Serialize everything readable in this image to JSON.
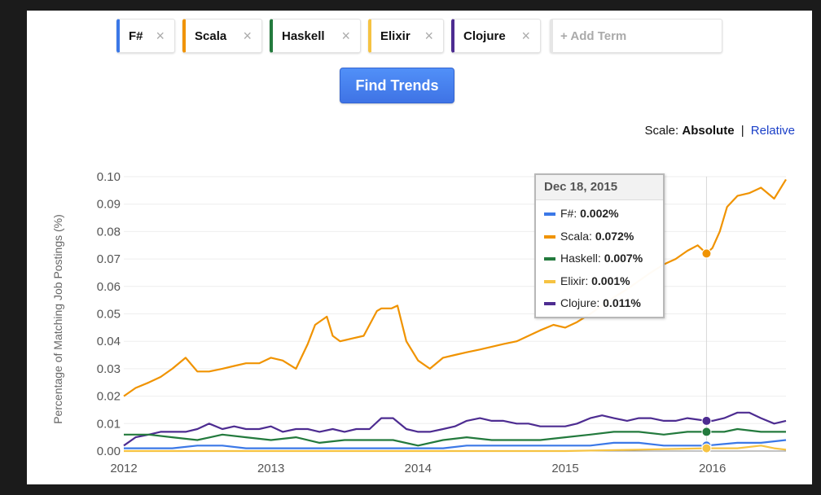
{
  "terms": [
    {
      "label": "F#",
      "color": "#3b78e7"
    },
    {
      "label": "Scala",
      "color": "#f09300"
    },
    {
      "label": "Haskell",
      "color": "#237a3d"
    },
    {
      "label": "Elixir",
      "color": "#f6c342"
    },
    {
      "label": "Clojure",
      "color": "#4d2c91"
    }
  ],
  "close_glyph": "×",
  "add_term_label": "+ Add Term",
  "find_button_label": "Find Trends",
  "scale": {
    "prefix": "Scale:",
    "selected": "Absolute",
    "separator": "|",
    "other": "Relative"
  },
  "tooltip": {
    "date": "Dec 18, 2015",
    "rows": [
      {
        "name": "F#",
        "value": "0.002%",
        "color": "#3b78e7"
      },
      {
        "name": "Scala",
        "value": "0.072%",
        "color": "#f09300"
      },
      {
        "name": "Haskell",
        "value": "0.007%",
        "color": "#237a3d"
      },
      {
        "name": "Elixir",
        "value": "0.001%",
        "color": "#f6c342"
      },
      {
        "name": "Clojure",
        "value": "0.011%",
        "color": "#4d2c91"
      }
    ]
  },
  "chart_data": {
    "type": "line",
    "title": "",
    "xlabel": "",
    "ylabel": "Percentage of Matching Job Postings (%)",
    "xlim": [
      2012.0,
      2016.5
    ],
    "ylim": [
      0,
      0.1
    ],
    "x_ticks": [
      "2012",
      "2013",
      "2014",
      "2015",
      "2016"
    ],
    "y_ticks": [
      "0.00",
      "0.01",
      "0.02",
      "0.03",
      "0.04",
      "0.05",
      "0.06",
      "0.07",
      "0.08",
      "0.09",
      "0.10"
    ],
    "grid": true,
    "hover_x": 2015.96,
    "series": [
      {
        "name": "Scala",
        "color": "#f09300",
        "x": [
          2012.0,
          2012.08,
          2012.17,
          2012.25,
          2012.33,
          2012.42,
          2012.5,
          2012.58,
          2012.67,
          2012.75,
          2012.83,
          2012.92,
          2013.0,
          2013.08,
          2013.17,
          2013.25,
          2013.3,
          2013.38,
          2013.42,
          2013.47,
          2013.55,
          2013.63,
          2013.72,
          2013.75,
          2013.82,
          2013.86,
          2013.92,
          2014.0,
          2014.08,
          2014.17,
          2014.25,
          2014.33,
          2014.42,
          2014.5,
          2014.58,
          2014.67,
          2014.75,
          2014.83,
          2014.92,
          2015.0,
          2015.08,
          2015.17,
          2015.25,
          2015.33,
          2015.42,
          2015.5,
          2015.58,
          2015.67,
          2015.75,
          2015.83,
          2015.9,
          2015.96,
          2016.0,
          2016.05,
          2016.1,
          2016.17,
          2016.25,
          2016.33,
          2016.42,
          2016.5
        ],
        "y": [
          0.02,
          0.023,
          0.025,
          0.027,
          0.03,
          0.034,
          0.029,
          0.029,
          0.03,
          0.031,
          0.032,
          0.032,
          0.034,
          0.033,
          0.03,
          0.039,
          0.046,
          0.049,
          0.042,
          0.04,
          0.041,
          0.042,
          0.051,
          0.052,
          0.052,
          0.053,
          0.04,
          0.033,
          0.03,
          0.034,
          0.035,
          0.036,
          0.037,
          0.038,
          0.039,
          0.04,
          0.042,
          0.044,
          0.046,
          0.045,
          0.047,
          0.05,
          0.053,
          0.056,
          0.059,
          0.062,
          0.065,
          0.068,
          0.07,
          0.073,
          0.075,
          0.072,
          0.074,
          0.08,
          0.089,
          0.093,
          0.094,
          0.096,
          0.092,
          0.099
        ]
      },
      {
        "name": "Clojure",
        "color": "#4d2c91",
        "x": [
          2012.0,
          2012.08,
          2012.17,
          2012.25,
          2012.33,
          2012.42,
          2012.5,
          2012.58,
          2012.67,
          2012.75,
          2012.83,
          2012.92,
          2013.0,
          2013.08,
          2013.17,
          2013.25,
          2013.33,
          2013.42,
          2013.5,
          2013.58,
          2013.67,
          2013.75,
          2013.83,
          2013.92,
          2014.0,
          2014.08,
          2014.17,
          2014.25,
          2014.33,
          2014.42,
          2014.5,
          2014.58,
          2014.67,
          2014.75,
          2014.83,
          2014.92,
          2015.0,
          2015.08,
          2015.17,
          2015.25,
          2015.33,
          2015.42,
          2015.5,
          2015.58,
          2015.67,
          2015.75,
          2015.83,
          2015.96,
          2016.0,
          2016.08,
          2016.17,
          2016.25,
          2016.33,
          2016.42,
          2016.5
        ],
        "y": [
          0.002,
          0.005,
          0.006,
          0.007,
          0.007,
          0.007,
          0.008,
          0.01,
          0.008,
          0.009,
          0.008,
          0.008,
          0.009,
          0.007,
          0.008,
          0.008,
          0.007,
          0.008,
          0.007,
          0.008,
          0.008,
          0.012,
          0.012,
          0.008,
          0.007,
          0.007,
          0.008,
          0.009,
          0.011,
          0.012,
          0.011,
          0.011,
          0.01,
          0.01,
          0.009,
          0.009,
          0.009,
          0.01,
          0.012,
          0.013,
          0.012,
          0.011,
          0.012,
          0.012,
          0.011,
          0.011,
          0.012,
          0.011,
          0.011,
          0.012,
          0.014,
          0.014,
          0.012,
          0.01,
          0.011
        ]
      },
      {
        "name": "Haskell",
        "color": "#237a3d",
        "x": [
          2012.0,
          2012.17,
          2012.33,
          2012.5,
          2012.67,
          2012.83,
          2013.0,
          2013.17,
          2013.33,
          2013.5,
          2013.67,
          2013.83,
          2014.0,
          2014.17,
          2014.33,
          2014.5,
          2014.67,
          2014.83,
          2015.0,
          2015.17,
          2015.33,
          2015.5,
          2015.67,
          2015.83,
          2015.96,
          2016.08,
          2016.17,
          2016.33,
          2016.5
        ],
        "y": [
          0.006,
          0.006,
          0.005,
          0.004,
          0.006,
          0.005,
          0.004,
          0.005,
          0.003,
          0.004,
          0.004,
          0.004,
          0.002,
          0.004,
          0.005,
          0.004,
          0.004,
          0.004,
          0.005,
          0.006,
          0.007,
          0.007,
          0.006,
          0.007,
          0.007,
          0.007,
          0.008,
          0.007,
          0.007
        ]
      },
      {
        "name": "F#",
        "color": "#3b78e7",
        "x": [
          2012.0,
          2012.17,
          2012.33,
          2012.5,
          2012.67,
          2012.83,
          2013.0,
          2013.17,
          2013.33,
          2013.5,
          2013.67,
          2013.83,
          2014.0,
          2014.17,
          2014.33,
          2014.5,
          2014.67,
          2014.83,
          2015.0,
          2015.17,
          2015.33,
          2015.5,
          2015.67,
          2015.83,
          2015.96,
          2016.17,
          2016.33,
          2016.5
        ],
        "y": [
          0.001,
          0.001,
          0.001,
          0.002,
          0.002,
          0.001,
          0.001,
          0.001,
          0.001,
          0.001,
          0.001,
          0.001,
          0.001,
          0.001,
          0.002,
          0.002,
          0.002,
          0.002,
          0.002,
          0.002,
          0.003,
          0.003,
          0.002,
          0.002,
          0.002,
          0.003,
          0.003,
          0.004
        ]
      },
      {
        "name": "Elixir",
        "color": "#f6c342",
        "x": [
          2012.0,
          2012.5,
          2013.0,
          2013.5,
          2014.0,
          2014.5,
          2015.0,
          2015.5,
          2015.96,
          2016.17,
          2016.33,
          2016.42,
          2016.5
        ],
        "y": [
          0.0,
          0.0,
          0.0,
          0.0,
          0.0,
          0.0,
          0.0,
          0.0005,
          0.001,
          0.001,
          0.002,
          0.001,
          0.0005
        ]
      }
    ]
  }
}
